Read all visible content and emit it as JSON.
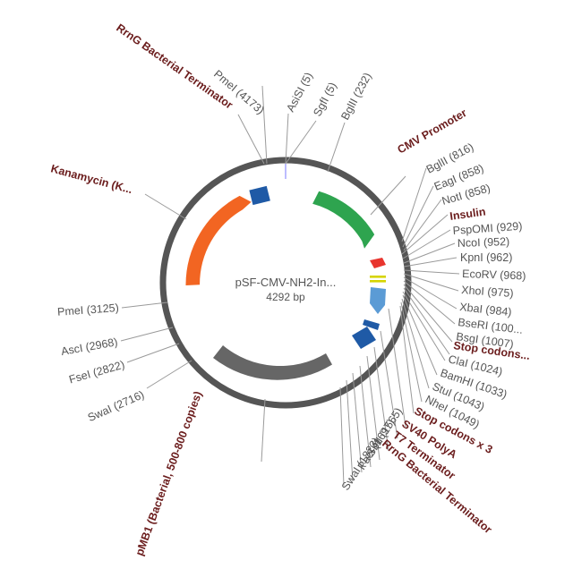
{
  "plasmid": {
    "name": "pSF-CMV-NH2-In...",
    "length_label": "4292 bp",
    "total_bp": 4292
  },
  "features": [
    {
      "id": "rrng-1",
      "label": "RrnG Bacterial Terminator",
      "color": "#1f5aa6"
    },
    {
      "id": "cmv",
      "label": "CMV Promoter",
      "color": "#2ea44f"
    },
    {
      "id": "kan",
      "label": "Kanamycin (K...",
      "color": "#f26522"
    },
    {
      "id": "insulin",
      "label": "Insulin",
      "color": "#e8352e"
    },
    {
      "id": "stop-1",
      "label": "Stop codons...",
      "color": "#d6d400"
    },
    {
      "id": "stop-3",
      "label": "Stop codons x 3",
      "color": "#d6d400"
    },
    {
      "id": "sv40",
      "label": "SV40 PolyA",
      "color": "#5b9bd5"
    },
    {
      "id": "t7",
      "label": "T7 Terminator",
      "color": "#1f5aa6"
    },
    {
      "id": "rrng-2",
      "label": "RrnG Bacterial Terminator",
      "color": "#1f5aa6"
    },
    {
      "id": "pmb1",
      "label": "pMB1 (Bacterial, 500-800 copies)",
      "color": "#666666"
    }
  ],
  "sites": [
    {
      "id": "pmei-4173",
      "label": "PmeI (4173)"
    },
    {
      "id": "asisi-5",
      "label": "AsiSI (5)"
    },
    {
      "id": "sgfi-5",
      "label": "SgfI (5)"
    },
    {
      "id": "bglii-232",
      "label": "BglII (232)"
    },
    {
      "id": "bglii-816",
      "label": "BglII (816)"
    },
    {
      "id": "eagi-858",
      "label": "EagI (858)"
    },
    {
      "id": "noti-858",
      "label": "NotI (858)"
    },
    {
      "id": "pspomi-929",
      "label": "PspOMI (929)"
    },
    {
      "id": "ncoi-952",
      "label": "NcoI (952)"
    },
    {
      "id": "kpni-962",
      "label": "KpnI (962)"
    },
    {
      "id": "ecorv-968",
      "label": "EcoRV (968)"
    },
    {
      "id": "xhoi-975",
      "label": "XhoI (975)"
    },
    {
      "id": "xbai-984",
      "label": "XbaI (984)"
    },
    {
      "id": "bseri-100",
      "label": "BseRI (100..."
    },
    {
      "id": "bsgi-1007",
      "label": "BsgI (1007)"
    },
    {
      "id": "clai-1024",
      "label": "ClaI (1024)"
    },
    {
      "id": "bamhi-1033",
      "label": "BamHI (1033)"
    },
    {
      "id": "stui-1043",
      "label": "StuI (1043)"
    },
    {
      "id": "nhei-1049",
      "label": "NheI (1049)"
    },
    {
      "id": "sbfi-1565",
      "label": "SbfI (1565)"
    },
    {
      "id": "paci-1697",
      "label": "PacI (1697)"
    },
    {
      "id": "swai-1823",
      "label": "SwaI (1823)"
    },
    {
      "id": "swai-2716",
      "label": "SwaI (2716)"
    },
    {
      "id": "fsei-2822",
      "label": "FseI (2822)"
    },
    {
      "id": "asci-2968",
      "label": "AscI (2968)"
    },
    {
      "id": "pmei-3125",
      "label": "PmeI (3125)"
    }
  ],
  "colors": {
    "backbone": "#555555",
    "leader": "#9a9a9a",
    "site_text": "#555555",
    "feature_text": "#6b1d1d"
  }
}
